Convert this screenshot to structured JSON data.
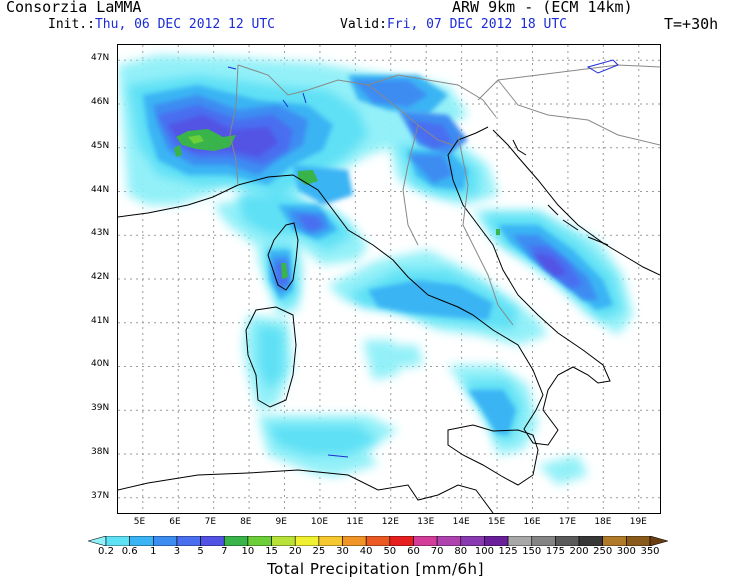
{
  "header": {
    "org": "Consorzia LaMMA",
    "model": "ARW 9km - (ECM 14km)",
    "init_label": "Init.:",
    "init_value": "Thu, 06 DEC 2012  12 UTC",
    "valid_label": "Valid:",
    "valid_value": "Fri, 07 DEC 2012  18 UTC",
    "lead": "T=+30h"
  },
  "map": {
    "lat_labels": [
      "47N",
      "46N",
      "45N",
      "44N",
      "43N",
      "42N",
      "41N",
      "40N",
      "39N",
      "38N",
      "37N"
    ],
    "lon_labels": [
      "5E",
      "6E",
      "7E",
      "8E",
      "9E",
      "10E",
      "11E",
      "12E",
      "13E",
      "14E",
      "15E",
      "16E",
      "17E",
      "18E",
      "19E"
    ],
    "lat_range": [
      36.65,
      47.35
    ],
    "lon_range": [
      4.3,
      19.6
    ]
  },
  "legend": {
    "title": "Total Precipitation [mm/6h]",
    "labels": [
      "0.2",
      "0.6",
      "1",
      "3",
      "5",
      "7",
      "10",
      "15",
      "20",
      "25",
      "30",
      "40",
      "50",
      "60",
      "70",
      "80",
      "100",
      "125",
      "150",
      "175",
      "200",
      "250",
      "300",
      "350"
    ],
    "colors": [
      "#8ef0f8",
      "#5ee0f5",
      "#3ab4f4",
      "#3d8cf2",
      "#4a6ef0",
      "#5252e4",
      "#38b44a",
      "#6ccf3a",
      "#b8e23a",
      "#f0f032",
      "#f5c830",
      "#f09428",
      "#ec5a24",
      "#e61e1e",
      "#d43c9a",
      "#b042b0",
      "#8a3ab0",
      "#6a1e9a",
      "#a8a8a8",
      "#848484",
      "#5a5a5a",
      "#383838",
      "#b07a28",
      "#8a5a1a",
      "#6a3e10"
    ]
  }
}
